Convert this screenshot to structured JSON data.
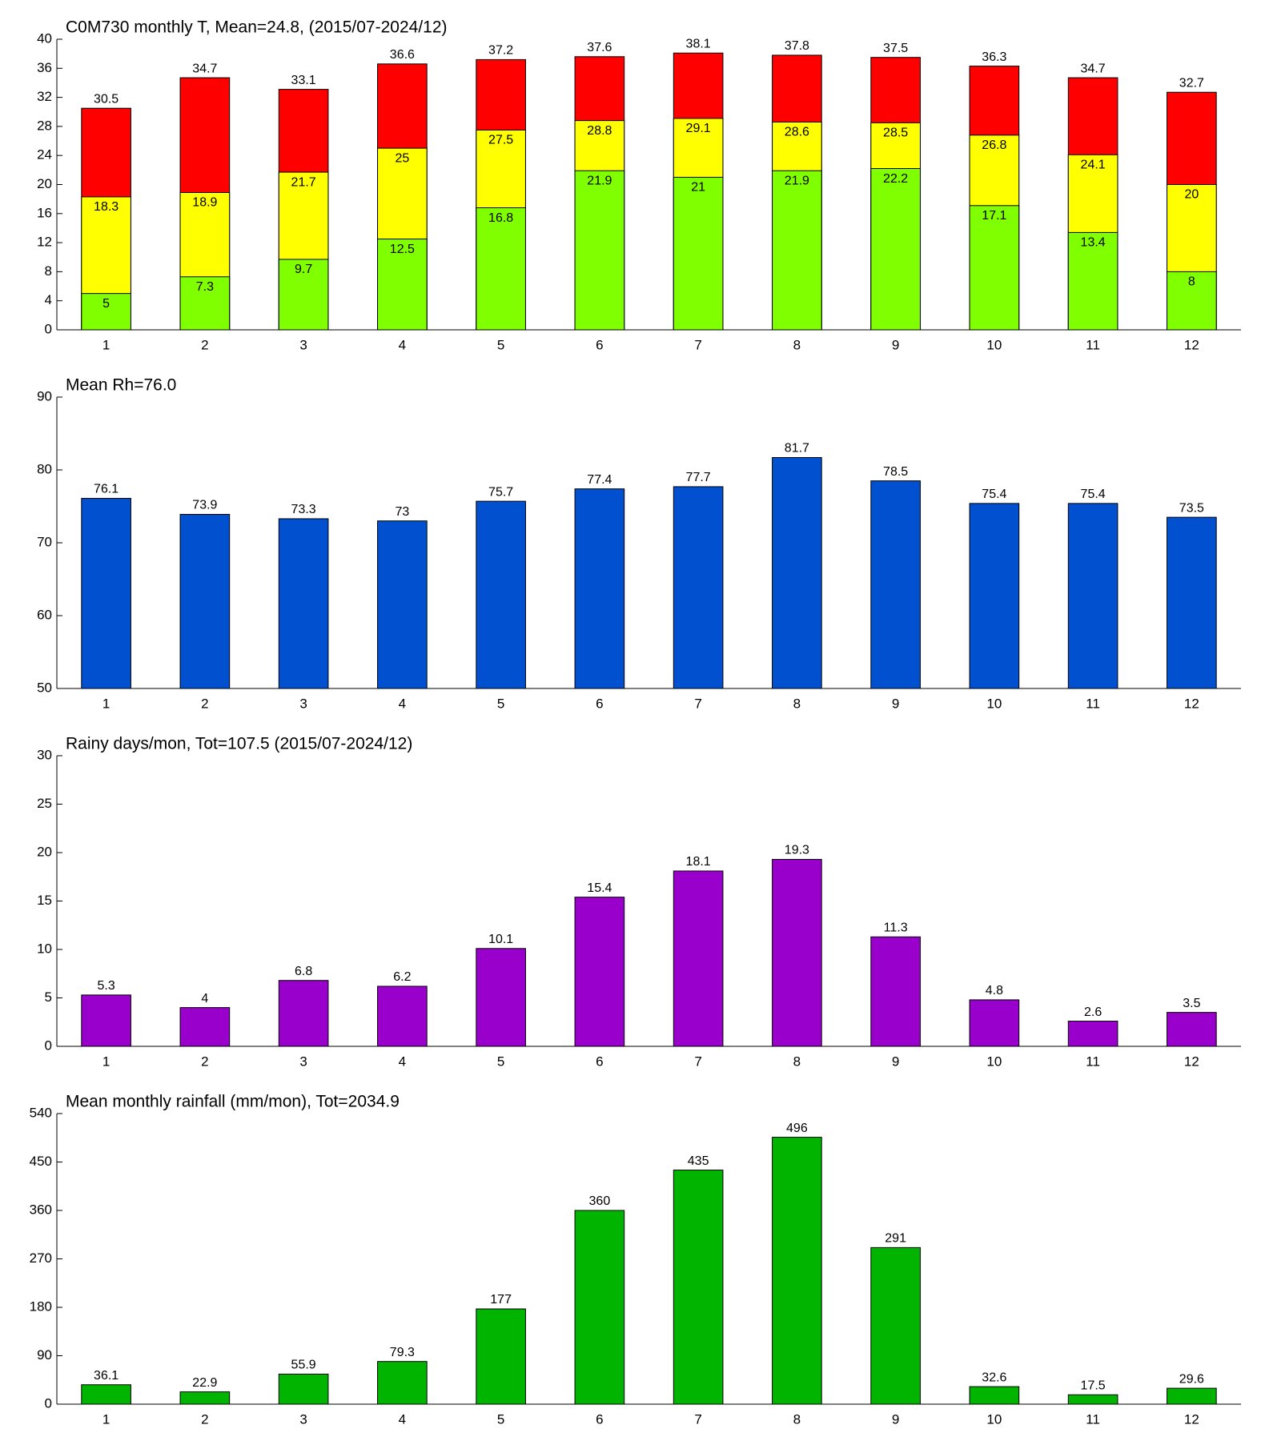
{
  "chart_data": [
    {
      "type": "bar",
      "title": "C0M730 monthly T, Mean=24.8, (2015/07-2024/12)",
      "categories": [
        1,
        2,
        3,
        4,
        5,
        6,
        7,
        8,
        9,
        10,
        11,
        12
      ],
      "series": [
        {
          "color": "#ff0000",
          "values": [
            30.5,
            34.7,
            33.1,
            36.6,
            37.2,
            37.6,
            38.1,
            37.8,
            37.5,
            36.3,
            34.7,
            32.7
          ]
        },
        {
          "color": "#ffff00",
          "values": [
            18.3,
            18.9,
            21.7,
            25,
            27.5,
            28.8,
            29.1,
            28.6,
            28.5,
            26.8,
            24.1,
            20
          ]
        },
        {
          "color": "#80ff00",
          "values": [
            5,
            7.3,
            9.7,
            12.5,
            16.8,
            21.9,
            21,
            21.9,
            22.2,
            17.1,
            13.4,
            8
          ]
        }
      ],
      "ylim": [
        0,
        40
      ],
      "yticks": [
        0,
        4,
        8,
        12,
        16,
        20,
        24,
        28,
        32,
        36,
        40
      ]
    },
    {
      "type": "bar",
      "title": "Mean Rh=76.0",
      "categories": [
        1,
        2,
        3,
        4,
        5,
        6,
        7,
        8,
        9,
        10,
        11,
        12
      ],
      "series": [
        {
          "color": "#0050d0",
          "values": [
            76.1,
            73.9,
            73.3,
            73,
            75.7,
            77.4,
            77.7,
            81.7,
            78.5,
            75.4,
            75.4,
            73.5
          ]
        }
      ],
      "ylim": [
        50,
        90
      ],
      "yticks": [
        50,
        60,
        70,
        80,
        90
      ]
    },
    {
      "type": "bar",
      "title": "Rainy days/mon, Tot=107.5 (2015/07-2024/12)",
      "categories": [
        1,
        2,
        3,
        4,
        5,
        6,
        7,
        8,
        9,
        10,
        11,
        12
      ],
      "series": [
        {
          "color": "#9900cc",
          "values": [
            5.3,
            4,
            6.8,
            6.2,
            10.1,
            15.4,
            18.1,
            19.3,
            11.3,
            4.8,
            2.6,
            3.5
          ]
        }
      ],
      "ylim": [
        0,
        30
      ],
      "yticks": [
        0,
        5,
        10,
        15,
        20,
        25,
        30
      ]
    },
    {
      "type": "bar",
      "title": "Mean monthly rainfall (mm/mon), Tot=2034.9",
      "categories": [
        1,
        2,
        3,
        4,
        5,
        6,
        7,
        8,
        9,
        10,
        11,
        12
      ],
      "series": [
        {
          "color": "#00b400",
          "values": [
            36.1,
            22.9,
            55.9,
            79.3,
            177,
            360,
            435,
            496,
            291,
            32.6,
            17.5,
            29.6
          ]
        }
      ],
      "ylim": [
        0,
        540
      ],
      "yticks": [
        0,
        90,
        180,
        270,
        360,
        450,
        540
      ]
    }
  ]
}
